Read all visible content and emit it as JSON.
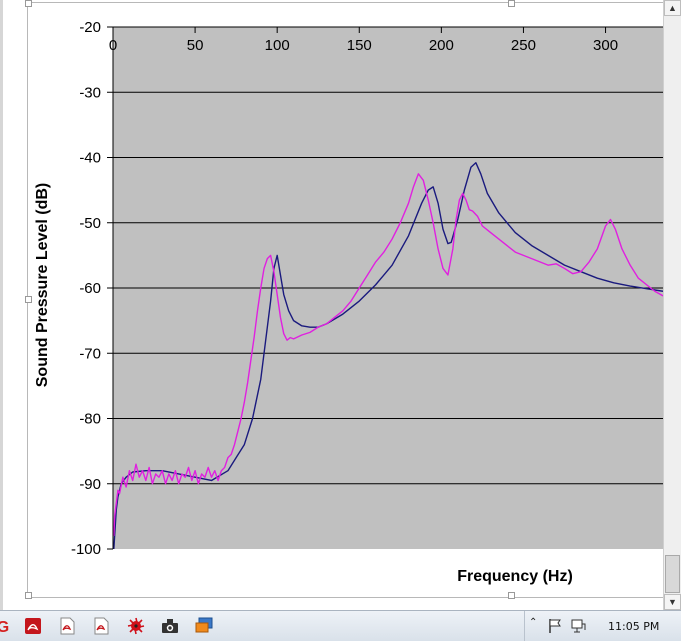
{
  "chart_data": {
    "type": "line",
    "xlabel": "Frequency (Hz)",
    "ylabel": "Sound Pressure Level (dB)",
    "xlim": [
      0,
      335
    ],
    "ylim": [
      -100,
      -20
    ],
    "x_ticks": [
      "0",
      "50",
      "100",
      "150",
      "200",
      "250",
      "300"
    ],
    "y_ticks": [
      "-20",
      "-30",
      "-40",
      "-50",
      "-60",
      "-70",
      "-80",
      "-90",
      "-100"
    ],
    "x_axis_position": "top",
    "grid": "horizontal",
    "plot_background": "#c0c0c0",
    "legend": "none",
    "series": [
      {
        "color": "#1a1a7e",
        "x": [
          0.5,
          1,
          2,
          3,
          5,
          8,
          12,
          20,
          30,
          40,
          50,
          60,
          70,
          75,
          80,
          85,
          90,
          93,
          96,
          98,
          100,
          102,
          104,
          107,
          110,
          115,
          120,
          125,
          130,
          140,
          150,
          160,
          170,
          180,
          188,
          192,
          195,
          198,
          201,
          204,
          206,
          210,
          214,
          218,
          221,
          224,
          228,
          235,
          245,
          255,
          265,
          275,
          285,
          295,
          305,
          315,
          325,
          335
        ],
        "y": [
          -100,
          -98,
          -94,
          -92,
          -90,
          -89,
          -88.2,
          -88,
          -88,
          -88.5,
          -89,
          -89.5,
          -88,
          -86,
          -84,
          -80,
          -74,
          -68,
          -62,
          -57,
          -55,
          -58,
          -61,
          -63.5,
          -65,
          -65.8,
          -66,
          -66,
          -65.5,
          -64,
          -62,
          -59.5,
          -56.5,
          -52,
          -47,
          -45,
          -44.5,
          -47,
          -51,
          -53.2,
          -53,
          -49.5,
          -45,
          -41.5,
          -40.8,
          -42.5,
          -45.5,
          -48.5,
          -51.5,
          -53.5,
          -55,
          -56.5,
          -57.5,
          -58.5,
          -59.2,
          -59.7,
          -60.1,
          -60.5
        ]
      },
      {
        "color": "#e020e0",
        "x": [
          0.5,
          1,
          2,
          3,
          4,
          6,
          8,
          10,
          12,
          14,
          16,
          18,
          20,
          22,
          24,
          26,
          28,
          30,
          32,
          34,
          36,
          38,
          40,
          42,
          44,
          46,
          48,
          50,
          52,
          54,
          56,
          58,
          60,
          62,
          64,
          66,
          68,
          70,
          72,
          74,
          76,
          78,
          80,
          82,
          84,
          86,
          88,
          90,
          92,
          94,
          96,
          98,
          100,
          102,
          104,
          106,
          108,
          110,
          115,
          120,
          125,
          130,
          135,
          140,
          145,
          150,
          155,
          160,
          165,
          170,
          175,
          180,
          183,
          186,
          189,
          192,
          195,
          198,
          201,
          204,
          207,
          209,
          211,
          213,
          215,
          217,
          219,
          222,
          225,
          230,
          235,
          240,
          245,
          250,
          255,
          260,
          265,
          270,
          275,
          280,
          285,
          290,
          295,
          300,
          303,
          306,
          310,
          315,
          320,
          325,
          330,
          335
        ],
        "y": [
          -98,
          -95,
          -93,
          -91,
          -91.5,
          -89,
          -90.5,
          -88,
          -89.5,
          -87,
          -89,
          -88,
          -89.5,
          -87.5,
          -90,
          -88.5,
          -89,
          -88,
          -90,
          -88.5,
          -89.5,
          -88,
          -90,
          -88.5,
          -89,
          -87.5,
          -89.5,
          -88,
          -90,
          -88.5,
          -89,
          -87.5,
          -89,
          -88,
          -89.5,
          -88,
          -87.5,
          -86,
          -85.5,
          -84,
          -82,
          -80,
          -77.5,
          -74.5,
          -71,
          -67.5,
          -63.5,
          -60,
          -57,
          -55.5,
          -55,
          -57.5,
          -61,
          -64.5,
          -67,
          -68,
          -67.6,
          -67.8,
          -67.2,
          -66.8,
          -66,
          -65.5,
          -64.5,
          -63.5,
          -62,
          -60,
          -58,
          -56,
          -54.5,
          -52.5,
          -50,
          -47,
          -44.5,
          -42.5,
          -43.5,
          -46.5,
          -50,
          -54,
          -57,
          -58,
          -54,
          -49.5,
          -46.5,
          -45.5,
          -46.5,
          -48,
          -48.2,
          -49,
          -50.5,
          -51.5,
          -52.5,
          -53.5,
          -54.5,
          -55,
          -55.5,
          -56,
          -56.5,
          -56.3,
          -57,
          -57.8,
          -57.5,
          -56,
          -54,
          -50.5,
          -49.5,
          -51,
          -54,
          -56.5,
          -58.5,
          -59.5,
          -60.5,
          -61.2
        ]
      }
    ]
  },
  "taskbar": {
    "clock": "11:05 PM",
    "icons": [
      "app-g-icon",
      "pdf-icon",
      "pdf-doc-icon",
      "pdf-doc-icon",
      "splat-icon",
      "camera-icon",
      "remote-desktop-icon"
    ],
    "tray_icons": [
      "chevron-up-icon",
      "flag-icon",
      "network-icon"
    ]
  }
}
